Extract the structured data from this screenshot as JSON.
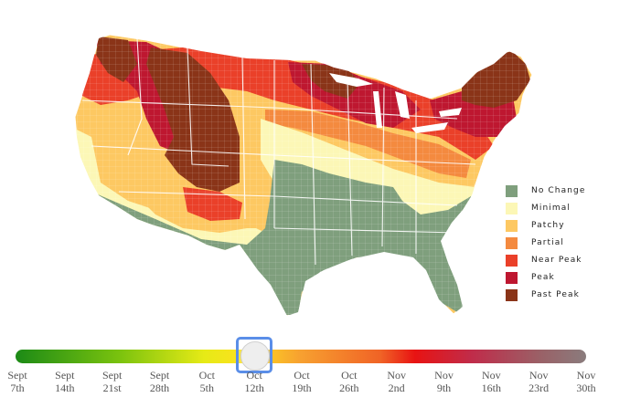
{
  "legend": [
    {
      "label": "No Change",
      "color": "#7f9f7d"
    },
    {
      "label": "Minimal",
      "color": "#fcf7b6"
    },
    {
      "label": "Patchy",
      "color": "#fdc862"
    },
    {
      "label": "Partial",
      "color": "#f48a3f"
    },
    {
      "label": "Near Peak",
      "color": "#ea4029"
    },
    {
      "label": "Peak",
      "color": "#be1730"
    },
    {
      "label": "Past Peak",
      "color": "#8a3418"
    }
  ],
  "timeline": {
    "selected_index": 5,
    "ticks": [
      {
        "line1": "Sept",
        "line2": "7th"
      },
      {
        "line1": "Sept",
        "line2": "14th"
      },
      {
        "line1": "Sept",
        "line2": "21st"
      },
      {
        "line1": "Sept",
        "line2": "28th"
      },
      {
        "line1": "Oct",
        "line2": "5th"
      },
      {
        "line1": "Oct",
        "line2": "12th"
      },
      {
        "line1": "Oct",
        "line2": "19th"
      },
      {
        "line1": "Oct",
        "line2": "26th"
      },
      {
        "line1": "Nov",
        "line2": "2nd"
      },
      {
        "line1": "Nov",
        "line2": "9th"
      },
      {
        "line1": "Nov",
        "line2": "16th"
      },
      {
        "line1": "Nov",
        "line2": "23rd"
      },
      {
        "line1": "Nov",
        "line2": "30th"
      }
    ]
  }
}
